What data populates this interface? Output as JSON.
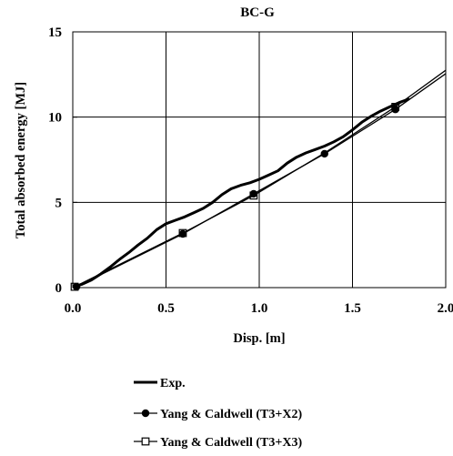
{
  "chart_data": {
    "type": "line",
    "title": "BC-G",
    "xlabel": "Disp. [m]",
    "ylabel": "Total absorbed energy [MJ]",
    "xlim": [
      0,
      2.0
    ],
    "ylim": [
      0,
      15
    ],
    "x_ticks": [
      "0.0",
      "0.5",
      "1.0",
      "1.5",
      "2.0"
    ],
    "y_ticks": [
      "0",
      "5",
      "10",
      "15"
    ],
    "grid": true,
    "legend_position": "bottom-center",
    "series": [
      {
        "name": "Exp.",
        "style": "thick-line",
        "x": [
          0.0,
          0.05,
          0.1,
          0.15,
          0.2,
          0.25,
          0.3,
          0.35,
          0.4,
          0.45,
          0.5,
          0.55,
          0.6,
          0.65,
          0.7,
          0.75,
          0.8,
          0.85,
          0.9,
          0.95,
          1.0,
          1.05,
          1.1,
          1.15,
          1.2,
          1.25,
          1.3,
          1.35,
          1.4,
          1.45,
          1.5,
          1.55,
          1.6,
          1.65,
          1.7,
          1.75,
          1.8
        ],
        "y": [
          0.05,
          0.2,
          0.45,
          0.8,
          1.2,
          1.65,
          2.05,
          2.5,
          2.9,
          3.4,
          3.75,
          3.95,
          4.15,
          4.4,
          4.65,
          5.0,
          5.45,
          5.8,
          6.0,
          6.15,
          6.35,
          6.6,
          6.85,
          7.3,
          7.65,
          7.9,
          8.1,
          8.3,
          8.55,
          8.85,
          9.25,
          9.7,
          10.05,
          10.35,
          10.6,
          10.85,
          11.05
        ]
      },
      {
        "name": "Yang & Caldwell (T3+X2)",
        "style": "line-filled-circle",
        "x": [
          0.0,
          0.02,
          0.59,
          0.97,
          1.35,
          1.73,
          2.0
        ],
        "y": [
          0.0,
          0.05,
          3.15,
          5.5,
          7.85,
          10.45,
          12.55
        ],
        "markers_x": [
          0.02,
          0.59,
          0.97,
          1.35,
          1.73
        ],
        "markers_y": [
          0.05,
          3.15,
          5.5,
          7.85,
          10.45
        ]
      },
      {
        "name": "Yang & Caldwell (T3+X3)",
        "style": "line-open-square",
        "x": [
          0.0,
          0.01,
          0.59,
          0.97,
          1.35,
          1.73,
          2.0
        ],
        "y": [
          0.0,
          0.05,
          3.2,
          5.4,
          7.9,
          10.6,
          12.75
        ],
        "markers_x": [
          0.01,
          0.59,
          0.97,
          1.73
        ],
        "markers_y": [
          0.05,
          3.2,
          5.4,
          10.6
        ]
      }
    ]
  }
}
